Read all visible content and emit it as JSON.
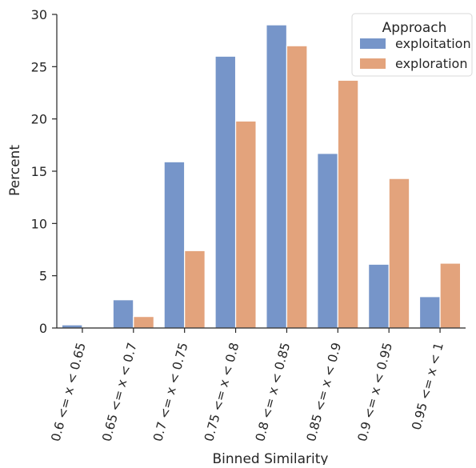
{
  "chart_data": {
    "type": "bar",
    "title": "",
    "xlabel": "Binned Similarity",
    "ylabel": "Percent",
    "ylim": [
      0,
      30
    ],
    "yticks": [
      0,
      5,
      10,
      15,
      20,
      25,
      30
    ],
    "grid": false,
    "legend_position": "top-right",
    "legend_title": "Approach",
    "categories": [
      "0.6 <= x < 0.65",
      "0.65 <= x < 0.7",
      "0.7 <= x < 0.75",
      "0.75 <= x < 0.8",
      "0.8 <= x < 0.85",
      "0.85 <= x < 0.9",
      "0.9 <= x < 0.95",
      "0.95 <= x < 1"
    ],
    "series": [
      {
        "name": "exploitation",
        "color": "#7695c9",
        "values": [
          0.3,
          2.7,
          15.9,
          26.0,
          29.0,
          16.7,
          6.1,
          3.0
        ]
      },
      {
        "name": "exploration",
        "color": "#e3a37c",
        "values": [
          0.0,
          1.1,
          7.4,
          19.8,
          27.0,
          23.7,
          14.3,
          6.2
        ]
      }
    ]
  }
}
